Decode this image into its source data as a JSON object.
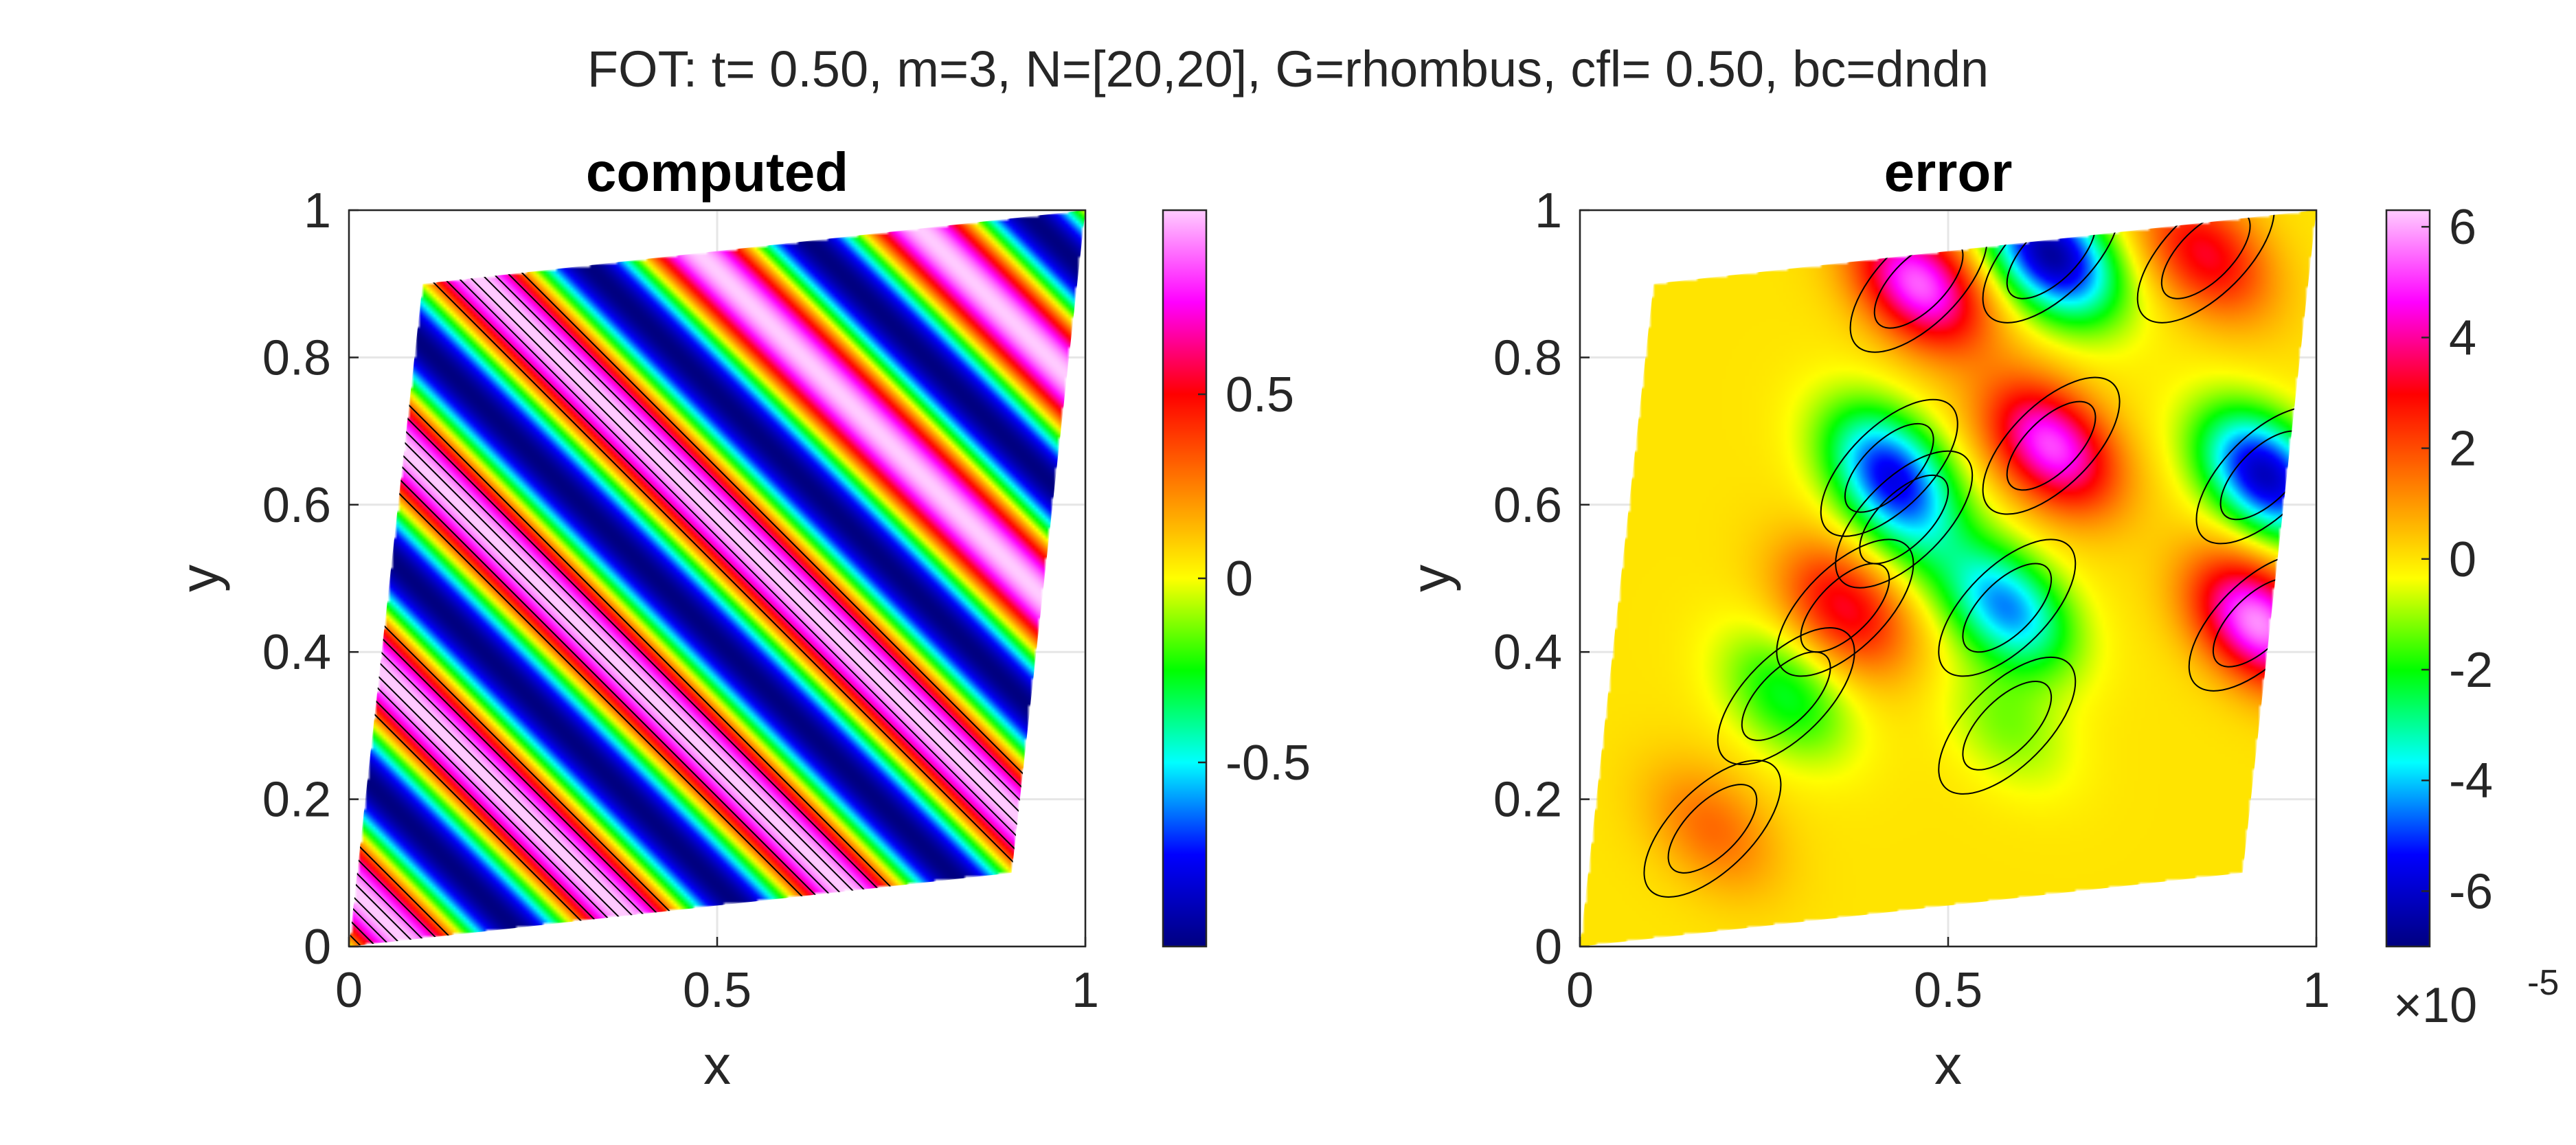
{
  "figure": {
    "title": "FOT: t= 0.50, m=3, N=[20,20], G=rhombus, cfl= 0.50, bc=dndn"
  },
  "colormap": [
    "#000080",
    "#0000ff",
    "#00ffff",
    "#00ff00",
    "#ffff00",
    "#ff8000",
    "#ff0000",
    "#ff00ff",
    "#ffccff"
  ],
  "chart_data": [
    {
      "type": "heatmap",
      "title": "computed",
      "xlabel": "x",
      "ylabel": "y",
      "xlim": [
        0,
        1
      ],
      "ylim": [
        0,
        1
      ],
      "xticks": [
        "0",
        "0.5",
        "1"
      ],
      "yticks": [
        "0",
        "0.2",
        "0.4",
        "0.6",
        "0.8",
        "1"
      ],
      "grid": true,
      "domain": {
        "shape": "rhombus",
        "corners": [
          [
            0,
            0
          ],
          [
            0.9,
            0.1
          ],
          [
            1,
            1
          ],
          [
            0.1,
            0.9
          ]
        ]
      },
      "field": {
        "description_type": "diagonal bands",
        "clim": [
          -1,
          1
        ]
      },
      "colorbar": {
        "location": "right",
        "ticks": [
          "0.5",
          "0",
          "-0.5"
        ],
        "multiplier": ""
      }
    },
    {
      "type": "heatmap",
      "title": "error",
      "xlabel": "x",
      "ylabel": "y",
      "xlim": [
        0,
        1
      ],
      "ylim": [
        0,
        1
      ],
      "xticks": [
        "0",
        "0.5",
        "1"
      ],
      "yticks": [
        "0",
        "0.2",
        "0.4",
        "0.6",
        "0.8",
        "1"
      ],
      "grid": true,
      "domain": {
        "shape": "rhombus",
        "corners": [
          [
            0,
            0
          ],
          [
            0.9,
            0.1
          ],
          [
            1,
            1
          ],
          [
            0.1,
            0.9
          ]
        ]
      },
      "field": {
        "clim": [
          -7,
          6.3
        ],
        "blobs": [
          {
            "x": 0.18,
            "y": 0.16,
            "value": 1.6
          },
          {
            "x": 0.36,
            "y": 0.46,
            "value": 3.2
          },
          {
            "x": 0.28,
            "y": 0.34,
            "value": -2.2
          },
          {
            "x": 0.44,
            "y": 0.58,
            "value": -1.8
          },
          {
            "x": 0.42,
            "y": 0.65,
            "value": -4.6
          },
          {
            "x": 0.58,
            "y": 0.46,
            "value": -4.4
          },
          {
            "x": 0.64,
            "y": 0.68,
            "value": 5.2
          },
          {
            "x": 0.46,
            "y": 0.9,
            "value": 5.4
          },
          {
            "x": 0.64,
            "y": 0.94,
            "value": -6.6
          },
          {
            "x": 0.85,
            "y": 0.94,
            "value": 3.2
          },
          {
            "x": 0.93,
            "y": 0.64,
            "value": -6.2
          },
          {
            "x": 0.92,
            "y": 0.44,
            "value": 5.8
          },
          {
            "x": 0.58,
            "y": 0.3,
            "value": -1.2
          }
        ]
      },
      "colorbar": {
        "location": "right",
        "ticks": [
          "6",
          "4",
          "2",
          "0",
          "-2",
          "-4",
          "-6"
        ],
        "multiplier": "×10",
        "exponent": "-5"
      }
    }
  ]
}
